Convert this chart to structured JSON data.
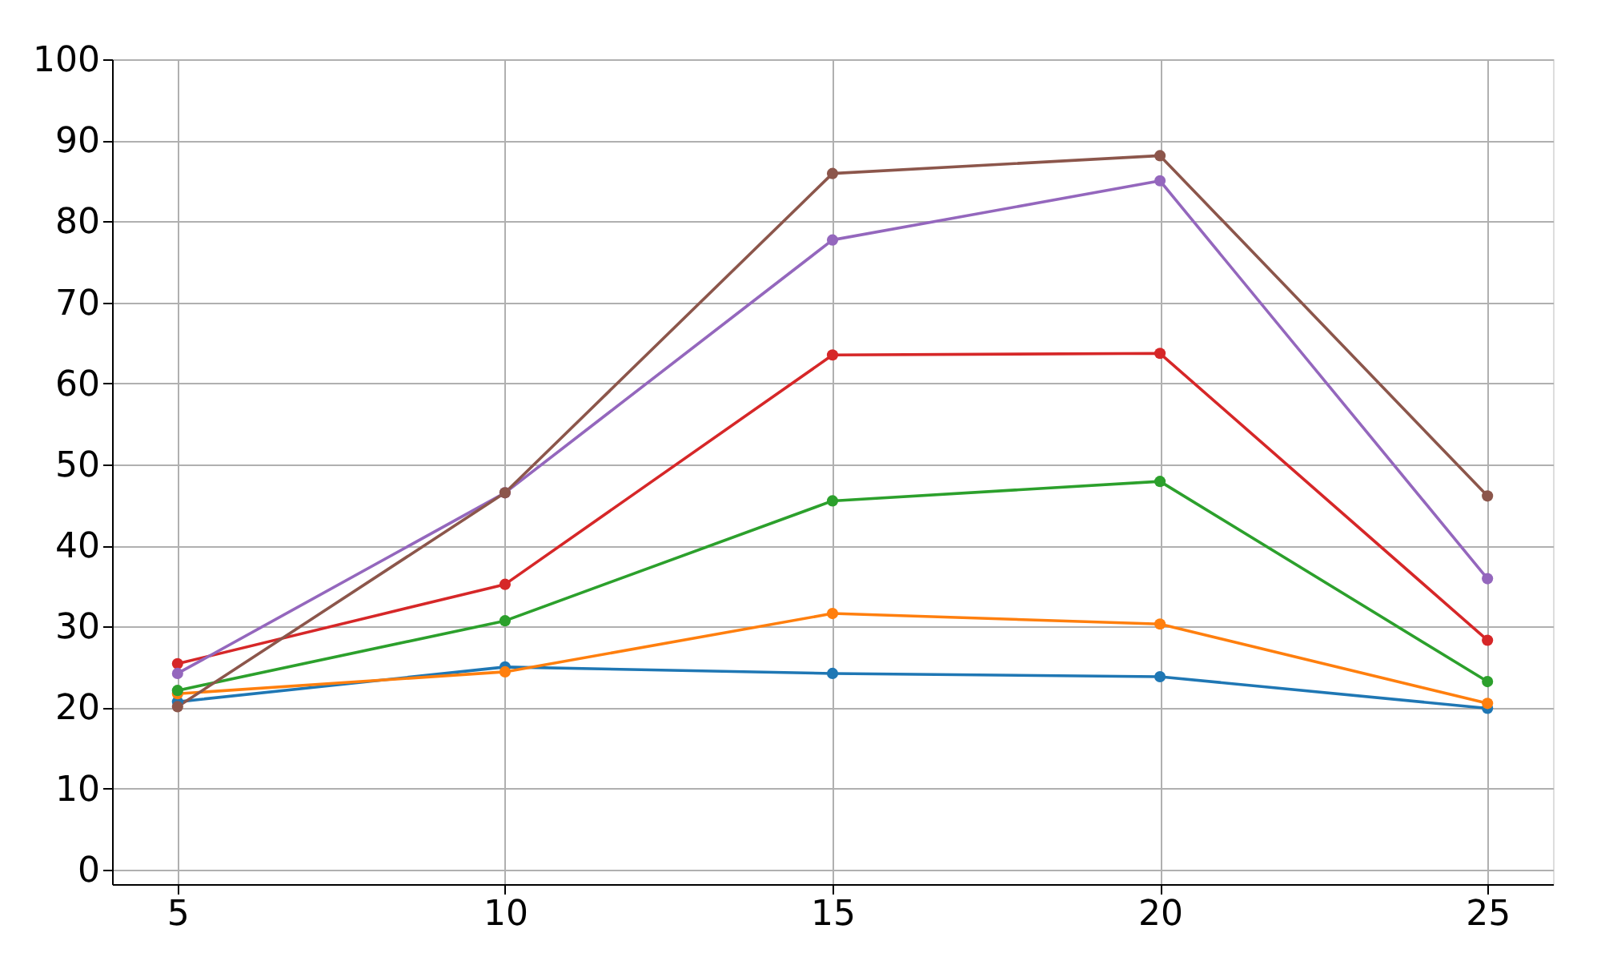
{
  "chart_data": {
    "type": "line",
    "x": [
      5,
      10,
      15,
      20,
      25
    ],
    "series": [
      {
        "color": "#1f77b4",
        "values": [
          20.7,
          25.0,
          24.2,
          23.8,
          19.9
        ]
      },
      {
        "color": "#ff7f0e",
        "values": [
          21.7,
          24.4,
          31.6,
          30.3,
          20.5
        ]
      },
      {
        "color": "#2ca02c",
        "values": [
          22.1,
          30.7,
          45.5,
          47.9,
          23.2
        ]
      },
      {
        "color": "#d62728",
        "values": [
          25.4,
          35.2,
          63.5,
          63.7,
          28.3
        ]
      },
      {
        "color": "#9467bd",
        "values": [
          24.2,
          46.5,
          77.7,
          85.0,
          35.9
        ]
      },
      {
        "color": "#8c564b",
        "values": [
          20.1,
          46.5,
          85.9,
          88.1,
          46.1
        ]
      }
    ],
    "xlim": [
      4,
      26
    ],
    "xticks": [
      5,
      10,
      15,
      20,
      25
    ],
    "ylim": [
      -1.8,
      100
    ],
    "yticks": [
      0,
      10,
      20,
      30,
      40,
      50,
      60,
      70,
      80,
      90,
      100
    ],
    "grid": true,
    "marker": "circle",
    "line_style": "solid",
    "legend": false
  }
}
